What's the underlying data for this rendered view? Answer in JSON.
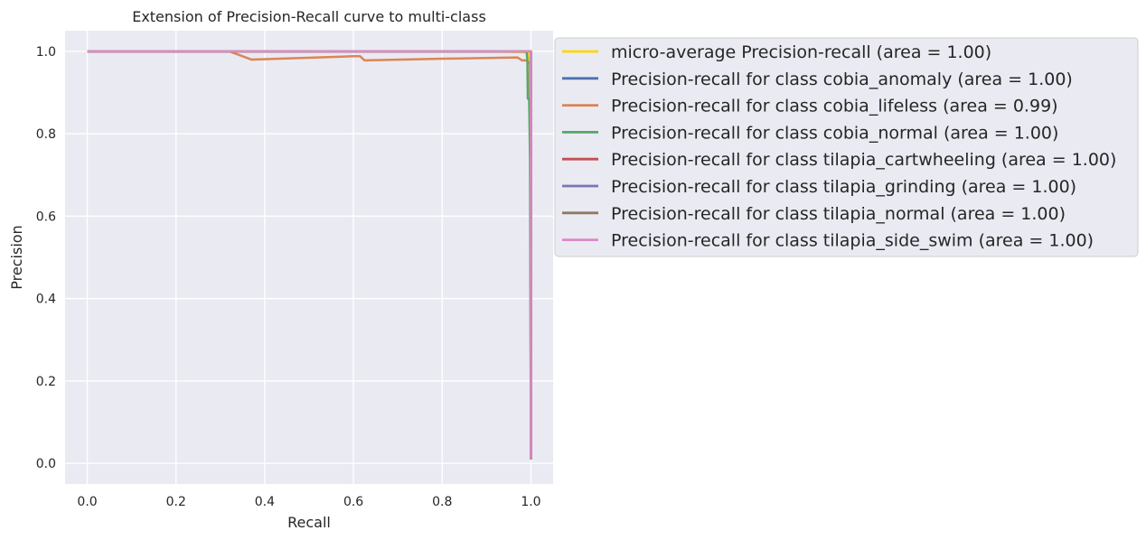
{
  "chart_data": {
    "type": "line",
    "title": "Extension of Precision-Recall curve to multi-class",
    "xlabel": "Recall",
    "ylabel": "Precision",
    "xlim": [
      -0.05,
      1.05
    ],
    "ylim": [
      -0.05,
      1.05
    ],
    "xticks": [
      "0.0",
      "0.2",
      "0.4",
      "0.6",
      "0.8",
      "1.0"
    ],
    "xtick_values": [
      0.0,
      0.2,
      0.4,
      0.6,
      0.8,
      1.0
    ],
    "yticks": [
      "0.0",
      "0.2",
      "0.4",
      "0.6",
      "0.8",
      "1.0"
    ],
    "ytick_values": [
      0.0,
      0.2,
      0.4,
      0.6,
      0.8,
      1.0
    ],
    "grid": true,
    "legend_position": "outside-right",
    "series": [
      {
        "name": "micro-average Precision-recall (area = 1.00)",
        "color": "#ffd700",
        "x": [
          0.0,
          0.9,
          0.99,
          0.993,
          0.996,
          0.998,
          0.999,
          1.0
        ],
        "y": [
          1.0,
          1.0,
          0.998,
          0.995,
          0.99,
          0.97,
          0.67,
          0.01
        ]
      },
      {
        "name": "Precision-recall for class cobia_anomaly (area = 1.00)",
        "color": "#4c72b0",
        "x": [
          0.0,
          0.999,
          1.0,
          1.0
        ],
        "y": [
          1.0,
          1.0,
          1.0,
          0.01
        ]
      },
      {
        "name": "Precision-recall for class cobia_lifeless (area = 0.99)",
        "color": "#dd8452",
        "x": [
          0.0,
          0.32,
          0.37,
          0.6,
          0.615,
          0.625,
          0.8,
          0.97,
          0.98,
          0.99,
          0.998,
          1.0
        ],
        "y": [
          1.0,
          1.0,
          0.98,
          0.988,
          0.988,
          0.978,
          0.982,
          0.985,
          0.978,
          0.978,
          0.97,
          0.01
        ]
      },
      {
        "name": "Precision-recall for class cobia_normal (area = 1.00)",
        "color": "#55a868",
        "x": [
          0.0,
          0.99,
          0.992,
          0.993,
          0.996,
          0.998,
          1.0
        ],
        "y": [
          1.0,
          1.0,
          0.98,
          0.885,
          0.885,
          0.74,
          0.01
        ]
      },
      {
        "name": "Precision-recall for class tilapia_cartwheeling (area = 1.00)",
        "color": "#c44e52",
        "x": [
          0.0,
          0.999,
          1.0,
          1.0
        ],
        "y": [
          1.0,
          1.0,
          1.0,
          0.01
        ]
      },
      {
        "name": "Precision-recall for class tilapia_grinding (area = 1.00)",
        "color": "#8172b3",
        "x": [
          0.0,
          0.999,
          1.0,
          1.0
        ],
        "y": [
          1.0,
          1.0,
          1.0,
          0.01
        ]
      },
      {
        "name": "Precision-recall for class tilapia_normal (area = 1.00)",
        "color": "#937860",
        "x": [
          0.0,
          0.999,
          1.0,
          1.0
        ],
        "y": [
          1.0,
          1.0,
          1.0,
          0.01
        ]
      },
      {
        "name": "Precision-recall for class tilapia_side_swim (area = 1.00)",
        "color": "#da8bc3",
        "x": [
          0.0,
          0.999,
          1.0,
          1.0
        ],
        "y": [
          1.0,
          1.0,
          1.0,
          0.01
        ]
      }
    ]
  }
}
